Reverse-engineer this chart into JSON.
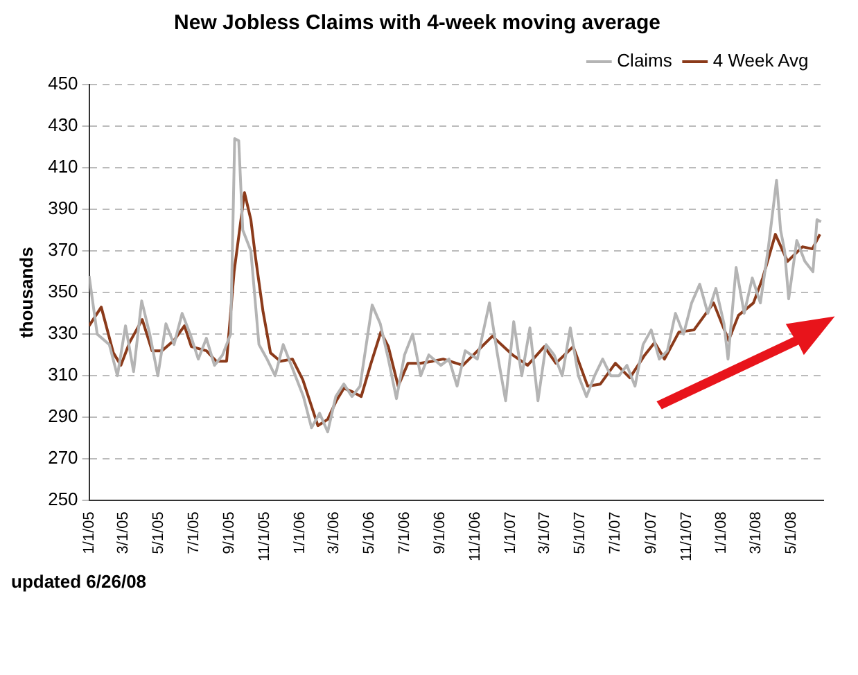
{
  "chart_data": {
    "type": "line",
    "title": "New Jobless Claims with 4-week moving average",
    "ylabel": "thousands",
    "annotations": [
      "updated 6/26/08"
    ],
    "xlim": [
      "2005-01-01",
      "2008-06-25"
    ],
    "xticks": [
      {
        "value": "2005-01-01",
        "label": "1/1/05"
      },
      {
        "value": "2005-03-01",
        "label": "3/1/05"
      },
      {
        "value": "2005-05-01",
        "label": "5/1/05"
      },
      {
        "value": "2005-07-01",
        "label": "7/1/05"
      },
      {
        "value": "2005-09-01",
        "label": "9/1/05"
      },
      {
        "value": "2005-11-01",
        "label": "11/1/05"
      },
      {
        "value": "2006-01-01",
        "label": "1/1/06"
      },
      {
        "value": "2006-03-01",
        "label": "3/1/06"
      },
      {
        "value": "2006-05-01",
        "label": "5/1/06"
      },
      {
        "value": "2006-07-01",
        "label": "7/1/06"
      },
      {
        "value": "2006-09-01",
        "label": "9/1/06"
      },
      {
        "value": "2006-11-01",
        "label": "11/1/06"
      },
      {
        "value": "2007-01-01",
        "label": "1/1/07"
      },
      {
        "value": "2007-03-01",
        "label": "3/1/07"
      },
      {
        "value": "2007-05-01",
        "label": "5/1/07"
      },
      {
        "value": "2007-07-01",
        "label": "7/1/07"
      },
      {
        "value": "2007-09-01",
        "label": "9/1/07"
      },
      {
        "value": "2007-11-01",
        "label": "11/1/07"
      },
      {
        "value": "2008-01-01",
        "label": "1/1/08"
      },
      {
        "value": "2008-03-01",
        "label": "3/1/08"
      },
      {
        "value": "2008-05-01",
        "label": "5/1/08"
      }
    ],
    "ylim": [
      250,
      450
    ],
    "yticks": [
      250,
      270,
      290,
      310,
      330,
      350,
      370,
      390,
      410,
      430,
      450
    ],
    "grid": "y",
    "legend": "top right",
    "marker": "none",
    "line_style": "solid",
    "series": [
      {
        "name": "Claims",
        "color": "#b4b4b4",
        "x": [
          "2005-01-01",
          "2005-01-15",
          "2005-02-05",
          "2005-02-19",
          "2005-03-05",
          "2005-03-19",
          "2005-04-02",
          "2005-04-16",
          "2005-04-30",
          "2005-05-14",
          "2005-05-28",
          "2005-06-11",
          "2005-06-25",
          "2005-07-09",
          "2005-07-23",
          "2005-08-06",
          "2005-08-20",
          "2005-09-03",
          "2005-09-10",
          "2005-09-17",
          "2005-09-24",
          "2005-10-08",
          "2005-10-22",
          "2005-11-05",
          "2005-11-19",
          "2005-12-03",
          "2005-12-17",
          "2006-01-07",
          "2006-01-21",
          "2006-02-04",
          "2006-02-18",
          "2006-03-04",
          "2006-03-18",
          "2006-04-01",
          "2006-04-15",
          "2006-05-06",
          "2006-05-20",
          "2006-06-03",
          "2006-06-17",
          "2006-07-01",
          "2006-07-15",
          "2006-07-29",
          "2006-08-12",
          "2006-09-02",
          "2006-09-16",
          "2006-09-30",
          "2006-10-14",
          "2006-11-04",
          "2006-11-25",
          "2006-12-09",
          "2006-12-23",
          "2007-01-06",
          "2007-01-20",
          "2007-02-03",
          "2007-02-17",
          "2007-03-03",
          "2007-03-17",
          "2007-03-31",
          "2007-04-14",
          "2007-04-28",
          "2007-05-12",
          "2007-05-26",
          "2007-06-09",
          "2007-06-23",
          "2007-07-07",
          "2007-07-21",
          "2007-08-04",
          "2007-08-18",
          "2007-09-01",
          "2007-09-15",
          "2007-09-29",
          "2007-10-13",
          "2007-10-27",
          "2007-11-10",
          "2007-11-24",
          "2007-12-08",
          "2007-12-22",
          "2008-01-05",
          "2008-01-12",
          "2008-01-26",
          "2008-02-09",
          "2008-02-23",
          "2008-03-08",
          "2008-03-22",
          "2008-04-05",
          "2008-04-12",
          "2008-04-19",
          "2008-04-26",
          "2008-05-10",
          "2008-05-24",
          "2008-06-07",
          "2008-06-14",
          "2008-06-21"
        ],
        "values": [
          358,
          330,
          325,
          310,
          334,
          312,
          346,
          330,
          310,
          335,
          325,
          340,
          330,
          318,
          328,
          315,
          320,
          330,
          424,
          423,
          380,
          370,
          325,
          318,
          310,
          325,
          315,
          300,
          285,
          292,
          283,
          300,
          306,
          300,
          305,
          344,
          335,
          318,
          299,
          320,
          330,
          310,
          320,
          315,
          318,
          305,
          322,
          318,
          345,
          320,
          298,
          336,
          310,
          333,
          298,
          325,
          320,
          310,
          333,
          310,
          300,
          310,
          318,
          310,
          310,
          315,
          305,
          325,
          332,
          318,
          322,
          340,
          330,
          345,
          354,
          340,
          352,
          335,
          318,
          362,
          340,
          357,
          345,
          372,
          404,
          380,
          370,
          347,
          375,
          365,
          360,
          385,
          384
        ]
      },
      {
        "name": "4 Week Avg",
        "color": "#8b3a1a",
        "x": [
          "2005-01-01",
          "2005-01-22",
          "2005-02-12",
          "2005-02-25",
          "2005-03-12",
          "2005-04-03",
          "2005-04-20",
          "2005-05-07",
          "2005-05-28",
          "2005-06-15",
          "2005-06-27",
          "2005-07-23",
          "2005-08-09",
          "2005-08-27",
          "2005-09-09",
          "2005-09-27",
          "2005-10-08",
          "2005-10-16",
          "2005-10-29",
          "2005-11-11",
          "2005-11-28",
          "2005-12-19",
          "2006-01-06",
          "2006-02-01",
          "2006-02-18",
          "2006-03-05",
          "2006-03-18",
          "2006-04-04",
          "2006-04-17",
          "2006-05-04",
          "2006-05-21",
          "2006-06-03",
          "2006-06-20",
          "2006-07-07",
          "2006-07-28",
          "2006-08-19",
          "2006-09-06",
          "2006-10-10",
          "2006-11-30",
          "2007-01-04",
          "2007-01-30",
          "2007-02-28",
          "2007-03-20",
          "2007-04-19",
          "2007-05-14",
          "2007-06-05",
          "2007-07-01",
          "2007-07-26",
          "2007-08-21",
          "2007-09-07",
          "2007-09-24",
          "2007-10-19",
          "2007-11-14",
          "2007-12-18",
          "2008-01-13",
          "2008-01-30",
          "2008-02-25",
          "2008-03-12",
          "2008-04-03",
          "2008-04-24",
          "2008-05-20",
          "2008-06-06",
          "2008-06-19"
        ],
        "values": [
          334,
          343,
          321,
          315,
          326,
          337,
          322,
          322,
          327,
          334,
          324,
          322,
          317,
          317,
          360,
          398,
          385,
          367,
          341,
          321,
          317,
          318,
          308,
          286,
          289,
          298,
          304,
          302,
          300,
          316,
          331,
          324,
          305,
          316,
          316,
          317,
          318,
          315,
          329,
          320,
          315,
          324,
          316,
          324,
          305,
          306,
          316,
          309,
          320,
          326,
          318,
          331,
          332,
          345,
          327,
          339,
          345,
          357,
          378,
          365,
          372,
          371,
          378
        ]
      }
    ]
  }
}
